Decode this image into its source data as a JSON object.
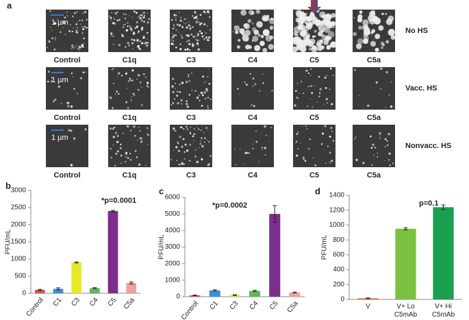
{
  "panel_a": {
    "label": "a",
    "scale_bar": "1 µm",
    "columns": [
      "Control",
      "C1q",
      "C3",
      "C4",
      "C5",
      "C5a"
    ],
    "rows": [
      "No HS",
      "Vacc. HS",
      "Nonvacc. HS"
    ]
  },
  "chart_data": [
    {
      "type": "bar",
      "panel_label": "b",
      "y_label": "PFU/mL",
      "annotation": "*p=0.0001",
      "categories": [
        "Control",
        "C1",
        "C3",
        "C4",
        "C5",
        "C5a"
      ],
      "values": [
        100,
        130,
        900,
        150,
        2400,
        300
      ],
      "errors": [
        15,
        30,
        15,
        15,
        20,
        30
      ],
      "colors": [
        "#e0504a",
        "#3b8fd0",
        "#e8e82a",
        "#5cb85c",
        "#7b2e8a",
        "#f0a0a0"
      ],
      "ylim": [
        0,
        3000
      ],
      "yticks": [
        0,
        500,
        1000,
        1500,
        2000,
        2500,
        3000
      ]
    },
    {
      "type": "bar",
      "panel_label": "c",
      "y_label": "PFU/mL",
      "annotation": "*p=0.0002",
      "categories": [
        "Control",
        "C1",
        "C3",
        "C4",
        "C5",
        "C5a"
      ],
      "values": [
        80,
        380,
        100,
        350,
        5000,
        250
      ],
      "errors": [
        20,
        40,
        20,
        40,
        500,
        30
      ],
      "colors": [
        "#e0504a",
        "#3b8fd0",
        "#e8e82a",
        "#5cb85c",
        "#7b2e8a",
        "#f0a0a0"
      ],
      "ylim": [
        0,
        6000
      ],
      "yticks": [
        0,
        1000,
        2000,
        3000,
        4000,
        5000,
        6000
      ]
    },
    {
      "type": "bar",
      "panel_label": "d",
      "y_label": "PFU/mL",
      "annotation": "p=0.1",
      "categories": [
        "V",
        "V+ Lo C5mAb",
        "V+ Hi C5mAb"
      ],
      "values": [
        15,
        950,
        1240
      ],
      "errors": [
        5,
        15,
        30
      ],
      "colors": [
        "#e07030",
        "#7cc040",
        "#1aa050"
      ],
      "ylim": [
        0,
        1400
      ],
      "yticks": [
        0,
        200,
        400,
        600,
        800,
        1000,
        1200,
        1400
      ]
    }
  ]
}
